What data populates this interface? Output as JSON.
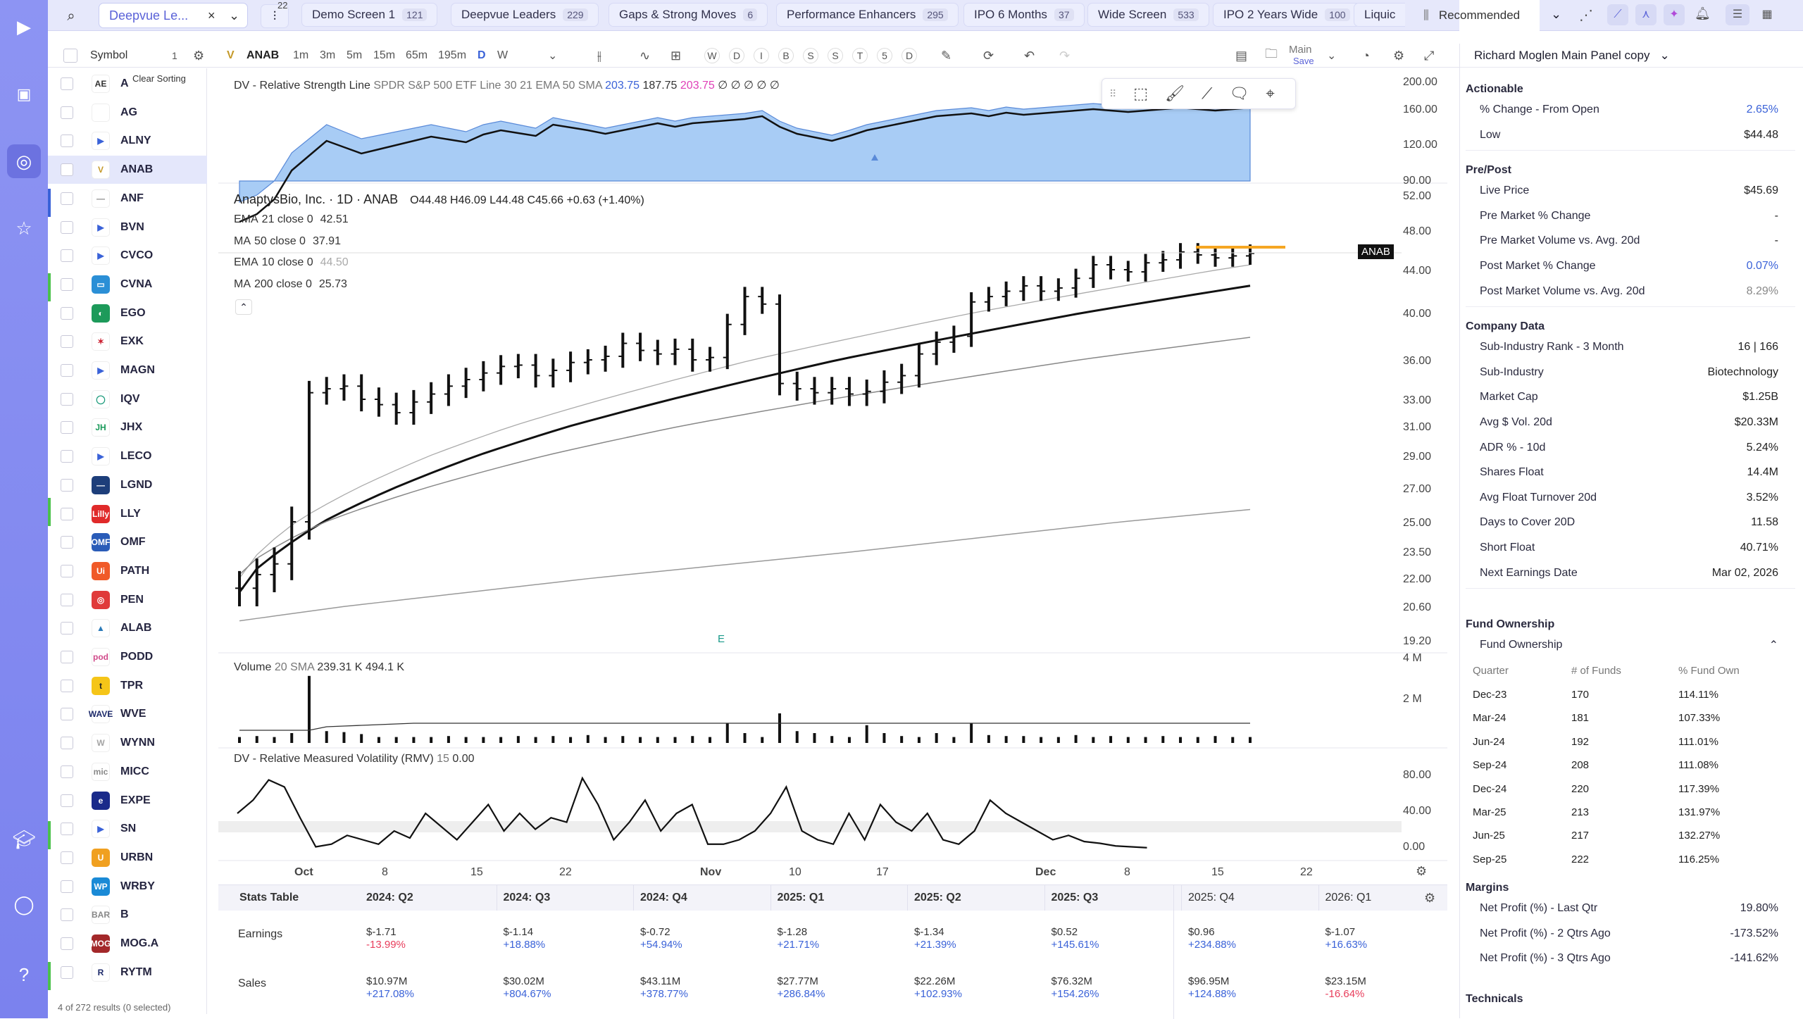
{
  "app": {
    "brand": "deepvue"
  },
  "tabs": [
    {
      "label": "Demo Screen 1",
      "count": "121"
    },
    {
      "label": "Deepvue Leaders",
      "count": "229"
    },
    {
      "label": "Gaps & Strong Moves",
      "count": "6"
    },
    {
      "label": "Performance Enhancers",
      "count": "295"
    },
    {
      "label": "IPO 6 Months",
      "count": "37"
    },
    {
      "label": "Wide Screen",
      "count": "533"
    },
    {
      "label": "IPO 2 Years Wide",
      "count": "100"
    },
    {
      "label": "Liquic",
      "count": ""
    }
  ],
  "screen_select": {
    "label": "Deepvue Le...",
    "badge": "22"
  },
  "sort": {
    "label": "Recommended"
  },
  "watchlist": {
    "header": "Symbol",
    "count": "1",
    "clear_sorting": "Clear Sorting",
    "footer": "4 of 272 results (0 selected)",
    "items": [
      {
        "sym": "A",
        "color": "#ffffff",
        "fg": "#333",
        "text": "AE"
      },
      {
        "sym": "AG",
        "color": "#ffffff",
        "fg": "#333",
        "text": ""
      },
      {
        "sym": "ALNY",
        "color": "#ffffff",
        "fg": "#3a62d8",
        "text": "▶"
      },
      {
        "sym": "ANAB",
        "color": "#ffffff",
        "fg": "#c59a2a",
        "text": "V"
      },
      {
        "sym": "ANF",
        "color": "#ffffff",
        "fg": "#888",
        "text": "—"
      },
      {
        "sym": "BVN",
        "color": "#ffffff",
        "fg": "#3a62d8",
        "text": "▶"
      },
      {
        "sym": "CVCO",
        "color": "#ffffff",
        "fg": "#3a62d8",
        "text": "▶"
      },
      {
        "sym": "CVNA",
        "color": "#2b8fd6",
        "fg": "#fff",
        "text": "▭"
      },
      {
        "sym": "EGO",
        "color": "#1d9a5a",
        "fg": "#fff",
        "text": "◐"
      },
      {
        "sym": "EXK",
        "color": "#ffffff",
        "fg": "#c23",
        "text": "✶"
      },
      {
        "sym": "MAGN",
        "color": "#ffffff",
        "fg": "#3a62d8",
        "text": "▶"
      },
      {
        "sym": "IQV",
        "color": "#ffffff",
        "fg": "#1a9a7a",
        "text": "◯"
      },
      {
        "sym": "JHX",
        "color": "#ffffff",
        "fg": "#1a9a5a",
        "text": "JH"
      },
      {
        "sym": "LECO",
        "color": "#ffffff",
        "fg": "#3a62d8",
        "text": "▶"
      },
      {
        "sym": "LGND",
        "color": "#1d3e7a",
        "fg": "#fff",
        "text": "—"
      },
      {
        "sym": "LLY",
        "color": "#e02a2a",
        "fg": "#fff",
        "text": "Lilly"
      },
      {
        "sym": "OMF",
        "color": "#2a5cb8",
        "fg": "#fff",
        "text": "OMF"
      },
      {
        "sym": "PATH",
        "color": "#f05a28",
        "fg": "#fff",
        "text": "Ui"
      },
      {
        "sym": "PEN",
        "color": "#e03a3a",
        "fg": "#fff",
        "text": "◎"
      },
      {
        "sym": "ALAB",
        "color": "#ffffff",
        "fg": "#2a7ab8",
        "text": "▲"
      },
      {
        "sym": "PODD",
        "color": "#ffffff",
        "fg": "#d04a8a",
        "text": "pod"
      },
      {
        "sym": "TPR",
        "color": "#f5c518",
        "fg": "#222",
        "text": "t"
      },
      {
        "sym": "WVE",
        "color": "#ffffff",
        "fg": "#1d2a6a",
        "text": "WAVE"
      },
      {
        "sym": "WYNN",
        "color": "#ffffff",
        "fg": "#a5a5a5",
        "text": "W"
      },
      {
        "sym": "MICC",
        "color": "#ffffff",
        "fg": "#888",
        "text": "mic"
      },
      {
        "sym": "EXPE",
        "color": "#1a2a8a",
        "fg": "#fff",
        "text": "e"
      },
      {
        "sym": "SN",
        "color": "#ffffff",
        "fg": "#3a62d8",
        "text": "▶"
      },
      {
        "sym": "URBN",
        "color": "#f0a020",
        "fg": "#fff",
        "text": "U"
      },
      {
        "sym": "WRBY",
        "color": "#1a8ad6",
        "fg": "#fff",
        "text": "WP"
      },
      {
        "sym": "B",
        "color": "#ffffff",
        "fg": "#888",
        "text": "BAR"
      },
      {
        "sym": "MOG.A",
        "color": "#a3282a",
        "fg": "#fff",
        "text": "MOG"
      },
      {
        "sym": "RYTM",
        "color": "#ffffff",
        "fg": "#1d2a6a",
        "text": "R"
      }
    ]
  },
  "chart_toolbar": {
    "symbol": "ANAB",
    "intervals": [
      "1m",
      "3m",
      "5m",
      "15m",
      "65m",
      "195m",
      "D",
      "W"
    ],
    "letters": [
      "W",
      "D",
      "I",
      "B",
      "S",
      "S",
      "T",
      "5",
      "D"
    ],
    "layout": "Main",
    "save": "Save"
  },
  "chart": {
    "rsl_title": "DV - Relative Strength Line",
    "rsl_params": "SPDR S&P 500 ETF Line 30 21 EMA 50 SMA",
    "rsl_v1": "203.75",
    "rsl_v2": "187.75",
    "rsl_v3": "203.75",
    "rsl_glyphs": "∅ ∅ ∅ ∅ ∅",
    "title": "AnaptysBio, Inc. · 1D · ANAB",
    "ohlc": "O44.48  H46.09  L44.48  C45.66  +0.63 (+1.40%)",
    "ma": [
      {
        "label": "EMA",
        "param": "21 close 0",
        "value": "42.51"
      },
      {
        "label": "MA",
        "param": "50 close 0",
        "value": "37.91"
      },
      {
        "label": "EMA",
        "param": "10 close 0",
        "value": "44.50"
      },
      {
        "label": "MA",
        "param": "200 close 0",
        "value": "25.73"
      }
    ],
    "symbol_tag": "ANAB",
    "earnings_marker": "E",
    "volume_title": "Volume",
    "volume_params": "20 SMA",
    "volume_v1": "239.31 K",
    "volume_v2": "494.1 K",
    "rmv_title": "DV - Relative Measured Volatility (RMV)",
    "rmv_param": "15",
    "rmv_value": "0.00",
    "x_labels": [
      "Oct",
      "8",
      "15",
      "22",
      "Nov",
      "10",
      "17",
      "Dec",
      "8",
      "15",
      "22"
    ],
    "rsl_ticks": [
      "200.00",
      "160.00",
      "120.00",
      "90.00"
    ],
    "price_ticks": [
      "52.00",
      "48.00",
      "44.00",
      "40.00",
      "36.00",
      "33.00",
      "31.00",
      "29.00",
      "27.00",
      "25.00",
      "23.50",
      "22.00",
      "20.60",
      "19.20"
    ],
    "vol_ticks": [
      "4 M",
      "2 M"
    ],
    "rmv_ticks": [
      "80.00",
      "40.00",
      "0.00"
    ]
  },
  "chart_data": {
    "type": "bar",
    "title": "AnaptysBio, Inc. · 1D · ANAB",
    "x": [
      "Sep 24",
      "Sep 25",
      "Sep 26",
      "Sep 29",
      "Sep 30",
      "Oct 1",
      "Oct 2",
      "Oct 3",
      "Oct 6",
      "Oct 7",
      "Oct 8",
      "Oct 9",
      "Oct 10",
      "Oct 13",
      "Oct 14",
      "Oct 15",
      "Oct 16",
      "Oct 17",
      "Oct 20",
      "Oct 21",
      "Oct 22",
      "Oct 23",
      "Oct 24",
      "Oct 27",
      "Oct 28",
      "Oct 29",
      "Oct 30",
      "Oct 31",
      "Nov 3",
      "Nov 4",
      "Nov 5",
      "Nov 6",
      "Nov 7",
      "Nov 10",
      "Nov 11",
      "Nov 12",
      "Nov 13",
      "Nov 14",
      "Nov 17",
      "Nov 18",
      "Nov 19",
      "Nov 20",
      "Nov 21",
      "Nov 24",
      "Nov 25",
      "Nov 26",
      "Nov 28",
      "Dec 1",
      "Dec 2",
      "Dec 3",
      "Dec 4",
      "Dec 5",
      "Dec 8",
      "Dec 9",
      "Dec 10",
      "Dec 11",
      "Dec 12",
      "Dec 15",
      "Dec 16"
    ],
    "close": [
      21.5,
      22.2,
      22.8,
      25.0,
      33.5,
      33.8,
      34.0,
      33.0,
      32.6,
      32.0,
      32.8,
      33.4,
      34.0,
      34.5,
      35.0,
      35.5,
      35.6,
      34.8,
      35.2,
      35.8,
      36.0,
      36.3,
      37.4,
      36.8,
      36.5,
      36.9,
      36.0,
      36.2,
      39.0,
      41.5,
      40.8,
      34.2,
      33.8,
      33.5,
      33.8,
      33.4,
      33.6,
      34.3,
      34.8,
      36.5,
      37.5,
      38.0,
      41.0,
      41.5,
      42.0,
      42.5,
      42.0,
      42.3,
      43.2,
      44.5,
      44.0,
      43.8,
      44.7,
      45.0,
      45.8,
      45.5,
      45.2,
      45.4,
      45.66
    ],
    "volume_millions": [
      0.3,
      0.35,
      0.3,
      0.5,
      3.4,
      0.6,
      0.55,
      0.45,
      0.3,
      0.3,
      0.3,
      0.3,
      0.35,
      0.3,
      0.3,
      0.3,
      0.35,
      0.3,
      0.35,
      0.3,
      0.4,
      0.3,
      0.35,
      0.3,
      0.3,
      0.3,
      0.35,
      0.3,
      1.0,
      0.5,
      0.3,
      1.5,
      0.6,
      0.5,
      0.35,
      0.3,
      0.9,
      0.5,
      0.35,
      0.3,
      0.5,
      0.3,
      1.0,
      0.4,
      0.35,
      0.35,
      0.3,
      0.3,
      0.4,
      0.3,
      0.35,
      0.3,
      0.3,
      0.35,
      0.3,
      0.3,
      0.35,
      0.3,
      0.3
    ],
    "series": [
      {
        "name": "EMA 21",
        "last": 42.51
      },
      {
        "name": "MA 50",
        "last": 37.91
      },
      {
        "name": "EMA 10",
        "last": 44.5
      },
      {
        "name": "MA 200",
        "last": 25.73
      }
    ],
    "ylim": [
      19.2,
      52.0
    ],
    "xlabel": "",
    "ylabel": ""
  },
  "stats": {
    "title": "Stats Table",
    "quarters": [
      "2024: Q2",
      "2024: Q3",
      "2024: Q4",
      "2025: Q1",
      "2025: Q2",
      "2025: Q3",
      "2025: Q4",
      "2026: Q1"
    ],
    "earnings_label": "Earnings",
    "sales_label": "Sales",
    "earnings": [
      [
        "$-1.71",
        "-13.99%"
      ],
      [
        "$-1.14",
        "+18.88%"
      ],
      [
        "$-0.72",
        "+54.94%"
      ],
      [
        "$-1.28",
        "+21.71%"
      ],
      [
        "$-1.34",
        "+21.39%"
      ],
      [
        "$0.52",
        "+145.61%"
      ],
      [
        "$0.96",
        "+234.88%"
      ],
      [
        "$-1.07",
        "+16.63%"
      ]
    ],
    "sales": [
      [
        "$10.97M",
        "+217.08%"
      ],
      [
        "$30.02M",
        "+804.67%"
      ],
      [
        "$43.11M",
        "+378.77%"
      ],
      [
        "$27.77M",
        "+286.84%"
      ],
      [
        "$22.26M",
        "+102.93%"
      ],
      [
        "$76.32M",
        "+154.26%"
      ],
      [
        "$96.95M",
        "+124.88%"
      ],
      [
        "$23.15M",
        "-16.64%"
      ]
    ]
  },
  "panel": {
    "title": "Richard Moglen Main Panel copy",
    "sections": [
      {
        "title": "Actionable",
        "rows": [
          [
            "% Change - From Open",
            "2.65%",
            "pos"
          ],
          [
            "Low",
            "$44.48",
            ""
          ]
        ]
      },
      {
        "title": "Pre/Post",
        "rows": [
          [
            "Live Price",
            "$45.69",
            ""
          ],
          [
            "Pre Market % Change",
            "-",
            ""
          ],
          [
            "Pre Market Volume vs. Avg. 20d",
            "-",
            ""
          ],
          [
            "Post Market % Change",
            "0.07%",
            "pos"
          ],
          [
            "Post Market Volume vs. Avg. 20d",
            "8.29%",
            "muted"
          ]
        ]
      },
      {
        "title": "Company Data",
        "rows": [
          [
            "Sub-Industry Rank - 3 Month",
            "16 | 166",
            ""
          ],
          [
            "Sub-Industry",
            "Biotechnology",
            ""
          ],
          [
            "Market Cap",
            "$1.25B",
            ""
          ],
          [
            "Avg $ Vol. 20d",
            "$20.33M",
            ""
          ],
          [
            "ADR % - 10d",
            "5.24%",
            ""
          ],
          [
            "Shares Float",
            "14.4M",
            ""
          ],
          [
            "Avg Float Turnover 20d",
            "3.52%",
            ""
          ],
          [
            "Days to Cover 20D",
            "11.58",
            ""
          ],
          [
            "Short Float",
            "40.71%",
            ""
          ],
          [
            "Next Earnings Date",
            "Mar 02, 2026",
            ""
          ]
        ]
      }
    ],
    "fund": {
      "title": "Fund Ownership",
      "sub": "Fund Ownership",
      "headers": [
        "Quarter",
        "# of Funds",
        "% Fund Own"
      ],
      "rows": [
        [
          "Dec-23",
          "170",
          "114.11%"
        ],
        [
          "Mar-24",
          "181",
          "107.33%"
        ],
        [
          "Jun-24",
          "192",
          "111.01%"
        ],
        [
          "Sep-24",
          "208",
          "111.08%"
        ],
        [
          "Dec-24",
          "220",
          "117.39%"
        ],
        [
          "Mar-25",
          "213",
          "131.97%"
        ],
        [
          "Jun-25",
          "217",
          "132.27%"
        ],
        [
          "Sep-25",
          "222",
          "116.25%"
        ]
      ]
    },
    "margins": {
      "title": "Margins",
      "rows": [
        [
          "Net Profit (%) - Last Qtr",
          "19.80%"
        ],
        [
          "Net Profit (%) - 2 Qtrs Ago",
          "-173.52%"
        ],
        [
          "Net Profit (%) - 3 Qtrs Ago",
          "-141.62%"
        ]
      ]
    },
    "technicals": "Technicals"
  }
}
